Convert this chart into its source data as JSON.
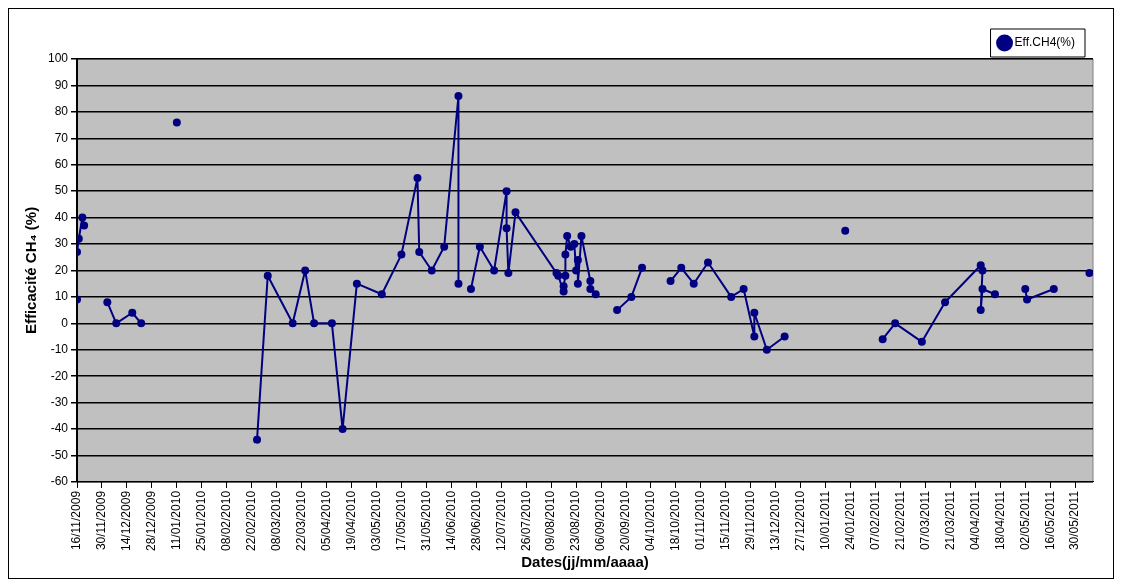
{
  "chart_data": {
    "type": "line",
    "xlabel": "Dates(jj/mm/aaaa)",
    "ylabel": "Efficacité CH₄ (%)",
    "xlim": [
      "2009-11-16",
      "2011-06-09"
    ],
    "xticks": [
      {
        "value": "2009-11-16",
        "label": "16/11/2009"
      },
      {
        "value": "2009-11-30",
        "label": "30/11/2009"
      },
      {
        "value": "2009-12-14",
        "label": "14/12/2009"
      },
      {
        "value": "2009-12-28",
        "label": "28/12/2009"
      },
      {
        "value": "2010-01-11",
        "label": "11/01/2010"
      },
      {
        "value": "2010-01-25",
        "label": "25/01/2010"
      },
      {
        "value": "2010-02-08",
        "label": "08/02/2010"
      },
      {
        "value": "2010-02-22",
        "label": "22/02/2010"
      },
      {
        "value": "2010-03-08",
        "label": "08/03/2010"
      },
      {
        "value": "2010-03-22",
        "label": "22/03/2010"
      },
      {
        "value": "2010-04-05",
        "label": "05/04/2010"
      },
      {
        "value": "2010-04-19",
        "label": "19/04/2010"
      },
      {
        "value": "2010-05-03",
        "label": "03/05/2010"
      },
      {
        "value": "2010-05-17",
        "label": "17/05/2010"
      },
      {
        "value": "2010-05-31",
        "label": "31/05/2010"
      },
      {
        "value": "2010-06-14",
        "label": "14/06/2010"
      },
      {
        "value": "2010-06-28",
        "label": "28/06/2010"
      },
      {
        "value": "2010-07-12",
        "label": "12/07/2010"
      },
      {
        "value": "2010-07-26",
        "label": "26/07/2010"
      },
      {
        "value": "2010-08-09",
        "label": "09/08/2010"
      },
      {
        "value": "2010-08-23",
        "label": "23/08/2010"
      },
      {
        "value": "2010-09-06",
        "label": "06/09/2010"
      },
      {
        "value": "2010-09-20",
        "label": "20/09/2010"
      },
      {
        "value": "2010-10-04",
        "label": "04/10/2010"
      },
      {
        "value": "2010-10-18",
        "label": "18/10/2010"
      },
      {
        "value": "2010-11-01",
        "label": "01/11/2010"
      },
      {
        "value": "2010-11-15",
        "label": "15/11/2010"
      },
      {
        "value": "2010-11-29",
        "label": "29/11/2010"
      },
      {
        "value": "2010-12-13",
        "label": "13/12/2010"
      },
      {
        "value": "2010-12-27",
        "label": "27/12/2010"
      },
      {
        "value": "2011-01-10",
        "label": "10/01/2011"
      },
      {
        "value": "2011-01-24",
        "label": "24/01/2011"
      },
      {
        "value": "2011-02-07",
        "label": "07/02/2011"
      },
      {
        "value": "2011-02-21",
        "label": "21/02/2011"
      },
      {
        "value": "2011-03-07",
        "label": "07/03/2011"
      },
      {
        "value": "2011-03-21",
        "label": "21/03/2011"
      },
      {
        "value": "2011-04-04",
        "label": "04/04/2011"
      },
      {
        "value": "2011-04-18",
        "label": "18/04/2011"
      },
      {
        "value": "2011-05-02",
        "label": "02/05/2011"
      },
      {
        "value": "2011-05-16",
        "label": "16/05/2011"
      },
      {
        "value": "2011-05-30",
        "label": "30/05/2011"
      }
    ],
    "ylim": [
      -60,
      100
    ],
    "yticks": [
      -60,
      -50,
      -40,
      -30,
      -20,
      -10,
      0,
      10,
      20,
      30,
      40,
      50,
      60,
      70,
      80,
      90,
      100
    ],
    "grid": "y",
    "legend": "top right",
    "marker": "circle",
    "line_style": "solid",
    "series": [
      {
        "name": "Eff.CH4(%)",
        "color": "#000080",
        "x": [
          "2009-11-16",
          "2009-11-16",
          "2009-11-17",
          "2009-11-19",
          "2009-11-20",
          "2009-11-27",
          "2009-12-03",
          "2009-12-08",
          "2009-12-17",
          "2009-12-22",
          "2010-01-01",
          "2010-01-11",
          "2010-02-01",
          "2010-02-25",
          "2010-03-03",
          "2010-03-17",
          "2010-03-24",
          "2010-03-29",
          "2010-04-08",
          "2010-04-14",
          "2010-04-22",
          "2010-05-06",
          "2010-05-17",
          "2010-05-26",
          "2010-05-27",
          "2010-06-03",
          "2010-06-10",
          "2010-06-18",
          "2010-06-18",
          "2010-06-22",
          "2010-06-25",
          "2010-06-30",
          "2010-07-08",
          "2010-07-15",
          "2010-07-15",
          "2010-07-16",
          "2010-07-20",
          "2010-08-12",
          "2010-08-13",
          "2010-08-16",
          "2010-08-16",
          "2010-08-17",
          "2010-08-17",
          "2010-08-18",
          "2010-08-20",
          "2010-08-22",
          "2010-08-23",
          "2010-08-24",
          "2010-08-24",
          "2010-08-26",
          "2010-08-31",
          "2010-08-31",
          "2010-09-03",
          "2010-09-09",
          "2010-09-15",
          "2010-09-23",
          "2010-09-29",
          "2010-10-07",
          "2010-10-15",
          "2010-10-21",
          "2010-10-28",
          "2010-11-05",
          "2010-11-18",
          "2010-11-25",
          "2010-12-01",
          "2010-12-01",
          "2010-12-08",
          "2010-12-18",
          "2011-01-01",
          "2011-01-21",
          "2011-02-01",
          "2011-02-11",
          "2011-02-18",
          "2011-03-05",
          "2011-03-18",
          "2011-04-07",
          "2011-04-08",
          "2011-04-07",
          "2011-04-08",
          "2011-04-15",
          "2011-04-25",
          "2011-05-02",
          "2011-05-03",
          "2011-05-18",
          "2011-05-30",
          "2011-06-07"
        ],
        "values": [
          9,
          27,
          32,
          40,
          37,
          null,
          8,
          0,
          4,
          0,
          null,
          76,
          null,
          -44,
          18,
          0,
          20,
          0,
          0,
          -40,
          15,
          11,
          26,
          55,
          27,
          20,
          29,
          86,
          15,
          null,
          13,
          29,
          20,
          50,
          36,
          19,
          42,
          19,
          18,
          12,
          14,
          18,
          26,
          33,
          29,
          30,
          20,
          24,
          15,
          33,
          16,
          13,
          11,
          null,
          5,
          10,
          21,
          null,
          16,
          21,
          15,
          23,
          10,
          13,
          -5,
          4,
          -10,
          -5,
          null,
          35,
          null,
          -6,
          0,
          -7,
          8,
          22,
          20,
          5,
          13,
          11,
          null,
          13,
          9,
          13,
          null,
          19
        ]
      }
    ]
  }
}
